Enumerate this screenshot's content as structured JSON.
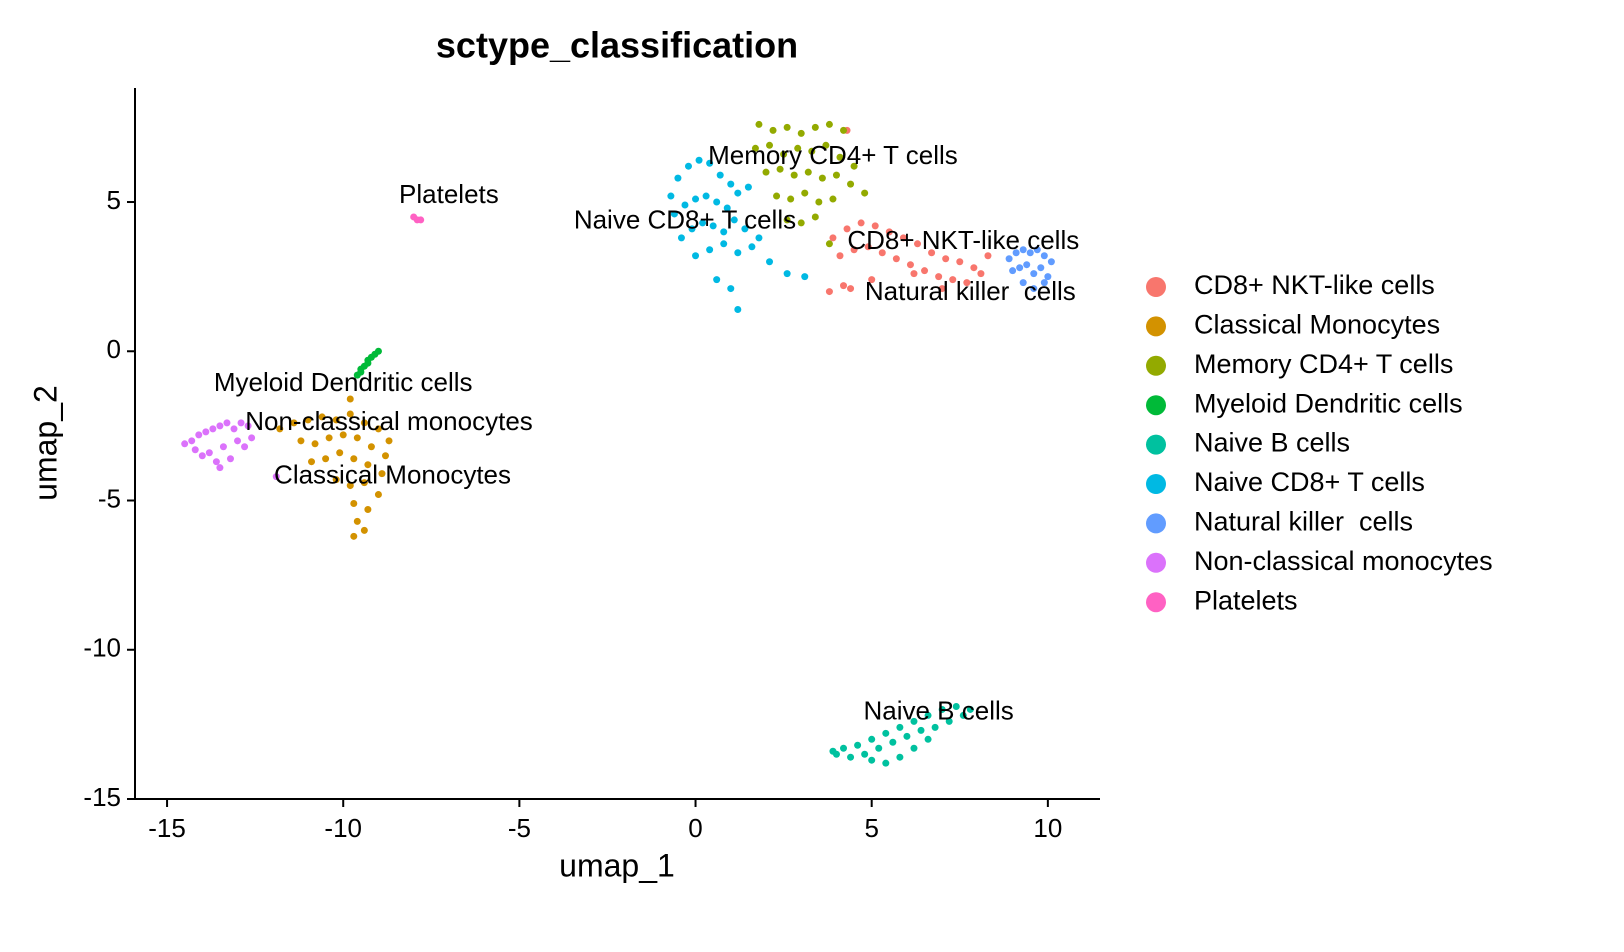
{
  "chart_data": {
    "type": "scatter",
    "title": "sctype_classification",
    "x_label": "umap_1",
    "y_label": "umap_2",
    "xlim": [
      -15.91,
      11.48
    ],
    "ylim": [
      -15,
      8.82
    ],
    "xticks": [
      -15,
      -10,
      -5,
      0,
      5,
      10
    ],
    "yticks": [
      -15,
      -10,
      -5,
      0,
      5
    ],
    "grid": false,
    "legend": "right",
    "series": [
      {
        "name": "CD8+ NKT-like cells",
        "color": "#F8766D",
        "x": [
          3.9,
          4.3,
          4.7,
          5.1,
          5.5,
          5.9,
          6.3,
          6.7,
          7.1,
          7.5,
          7.9,
          8.3,
          4.1,
          4.5,
          4.9,
          5.3,
          5.7,
          6.1,
          6.5,
          6.9,
          7.3,
          7.7,
          8.1,
          4.4,
          3.8,
          4.2,
          5.0,
          6.2,
          7.0,
          4.3
        ],
        "y": [
          3.8,
          4.1,
          4.3,
          4.2,
          4.0,
          3.8,
          3.6,
          3.3,
          3.1,
          3.0,
          2.8,
          3.2,
          3.2,
          3.4,
          3.5,
          3.3,
          3.1,
          2.9,
          2.7,
          2.5,
          2.4,
          2.3,
          2.6,
          2.1,
          2.0,
          2.2,
          2.4,
          2.6,
          2.1,
          7.4
        ]
      },
      {
        "name": "Classical Monocytes",
        "color": "#D39200",
        "x": [
          -11.8,
          -11.4,
          -11.0,
          -10.6,
          -10.2,
          -9.8,
          -9.4,
          -9.0,
          -8.7,
          -11.2,
          -10.8,
          -10.4,
          -10.0,
          -9.6,
          -9.2,
          -8.8,
          -10.9,
          -10.5,
          -10.1,
          -9.7,
          -9.3,
          -8.9,
          -10.2,
          -9.8,
          -9.4,
          -9.0,
          -9.7,
          -9.3,
          -9.6,
          -9.4,
          -9.8,
          -9.7
        ],
        "y": [
          -2.6,
          -2.4,
          -2.3,
          -2.2,
          -2.3,
          -2.1,
          -2.4,
          -2.6,
          -3.0,
          -3.0,
          -3.1,
          -2.9,
          -2.8,
          -2.9,
          -3.2,
          -3.5,
          -3.7,
          -3.6,
          -3.4,
          -3.6,
          -3.8,
          -4.1,
          -4.3,
          -4.5,
          -4.4,
          -4.8,
          -5.1,
          -5.3,
          -5.7,
          -6.0,
          -1.6,
          -6.2
        ]
      },
      {
        "name": "Memory CD4+ T cells",
        "color": "#93AA00",
        "x": [
          1.8,
          2.2,
          2.6,
          3.0,
          3.4,
          3.8,
          4.2,
          1.7,
          2.1,
          2.5,
          2.9,
          3.3,
          3.7,
          4.1,
          4.5,
          2.0,
          2.4,
          2.8,
          3.2,
          3.6,
          4.0,
          4.4,
          4.8,
          2.3,
          2.7,
          3.1,
          3.5,
          3.9,
          2.6,
          3.0,
          3.4,
          3.8
        ],
        "y": [
          7.6,
          7.4,
          7.5,
          7.3,
          7.5,
          7.6,
          7.4,
          6.8,
          6.9,
          6.6,
          6.8,
          6.7,
          6.9,
          6.5,
          6.2,
          6.0,
          6.1,
          5.9,
          6.0,
          5.8,
          5.9,
          5.6,
          5.3,
          5.2,
          5.1,
          5.3,
          5.0,
          5.1,
          4.4,
          4.3,
          4.5,
          3.6
        ]
      },
      {
        "name": "Myeloid Dendritic cells",
        "color": "#00BA38",
        "x": [
          -9.6,
          -9.5,
          -9.4,
          -9.3,
          -9.2,
          -9.1,
          -9.0,
          -9.5,
          -9.3
        ],
        "y": [
          -0.8,
          -0.6,
          -0.5,
          -0.3,
          -0.2,
          -0.1,
          0.0,
          -0.7,
          -0.4
        ]
      },
      {
        "name": "Naive B cells",
        "color": "#00C19F",
        "x": [
          4.2,
          4.6,
          5.0,
          5.4,
          5.8,
          6.2,
          6.6,
          7.0,
          7.4,
          7.8,
          4.0,
          4.4,
          4.8,
          5.2,
          5.6,
          6.0,
          6.4,
          6.8,
          7.2,
          7.6,
          5.0,
          5.4,
          5.8,
          6.2,
          6.6,
          3.9
        ],
        "y": [
          -13.3,
          -13.2,
          -13.0,
          -12.8,
          -12.6,
          -12.4,
          -12.2,
          -12.0,
          -11.9,
          -12.0,
          -13.5,
          -13.6,
          -13.5,
          -13.3,
          -13.1,
          -12.9,
          -12.7,
          -12.6,
          -12.4,
          -12.2,
          -13.7,
          -13.8,
          -13.6,
          -13.3,
          -13.0,
          -13.4
        ]
      },
      {
        "name": "Naive CD8+ T cells",
        "color": "#00B9E3",
        "x": [
          -0.7,
          -0.5,
          -0.2,
          0.1,
          0.4,
          0.7,
          1.0,
          -0.6,
          -0.3,
          0.0,
          0.3,
          0.6,
          0.9,
          1.2,
          1.5,
          -0.4,
          -0.1,
          0.2,
          0.5,
          0.8,
          1.1,
          1.4,
          1.8,
          0.0,
          0.4,
          0.8,
          1.2,
          1.6,
          2.1,
          2.6,
          0.6,
          1.0,
          1.2,
          3.1
        ],
        "y": [
          5.2,
          5.8,
          6.2,
          6.4,
          6.3,
          5.9,
          5.6,
          4.6,
          4.9,
          5.1,
          5.2,
          5.0,
          4.8,
          5.3,
          5.5,
          3.8,
          4.1,
          4.3,
          4.2,
          4.0,
          4.4,
          4.1,
          3.8,
          3.2,
          3.4,
          3.6,
          3.3,
          3.5,
          3.0,
          2.6,
          2.4,
          2.1,
          1.4,
          2.5
        ]
      },
      {
        "name": "Natural killer  cells",
        "color": "#619CFF",
        "x": [
          8.9,
          9.1,
          9.3,
          9.5,
          9.7,
          9.9,
          10.1,
          9.0,
          9.2,
          9.4,
          9.6,
          9.8,
          10.0,
          9.3,
          9.6,
          9.9
        ],
        "y": [
          3.1,
          3.3,
          3.4,
          3.3,
          3.4,
          3.2,
          3.0,
          2.7,
          2.8,
          2.9,
          2.6,
          2.8,
          2.5,
          2.3,
          2.1,
          2.3
        ]
      },
      {
        "name": "Non-classical monocytes",
        "color": "#DB72FB",
        "x": [
          -14.5,
          -14.3,
          -14.1,
          -13.9,
          -13.7,
          -13.5,
          -13.3,
          -13.1,
          -12.9,
          -12.7,
          -14.2,
          -13.8,
          -13.4,
          -13.0,
          -12.6,
          -14.0,
          -13.6,
          -13.2,
          -12.8,
          -13.5,
          -11.9
        ],
        "y": [
          -3.1,
          -3.0,
          -2.8,
          -2.7,
          -2.6,
          -2.5,
          -2.4,
          -2.6,
          -2.4,
          -2.5,
          -3.3,
          -3.4,
          -3.2,
          -3.0,
          -2.9,
          -3.5,
          -3.7,
          -3.6,
          -3.2,
          -3.9,
          -4.2
        ]
      },
      {
        "name": "Platelets",
        "color": "#FF61C3",
        "x": [
          -8.0,
          -7.9,
          -7.8
        ],
        "y": [
          4.5,
          4.4,
          4.4
        ]
      }
    ],
    "annotations": [
      {
        "text": "Memory CD4+ T cells",
        "x": 3.9,
        "y": 6.5
      },
      {
        "text": "Platelets",
        "x": -7.0,
        "y": 5.2
      },
      {
        "text": "Naive CD8+ T cells",
        "x": -0.3,
        "y": 4.35
      },
      {
        "text": "CD8+ NKT-like cells",
        "x": 7.6,
        "y": 3.65
      },
      {
        "text": "Natural killer  cells",
        "x": 7.8,
        "y": 1.95
      },
      {
        "text": "Myeloid Dendritic cells",
        "x": -10.0,
        "y": -1.1
      },
      {
        "text": "Non-classical monocytes",
        "x": -8.7,
        "y": -2.4
      },
      {
        "text": "Classical Monocytes",
        "x": -8.6,
        "y": -4.2
      },
      {
        "text": "Naive B cells",
        "x": 6.9,
        "y": -12.1
      }
    ]
  }
}
